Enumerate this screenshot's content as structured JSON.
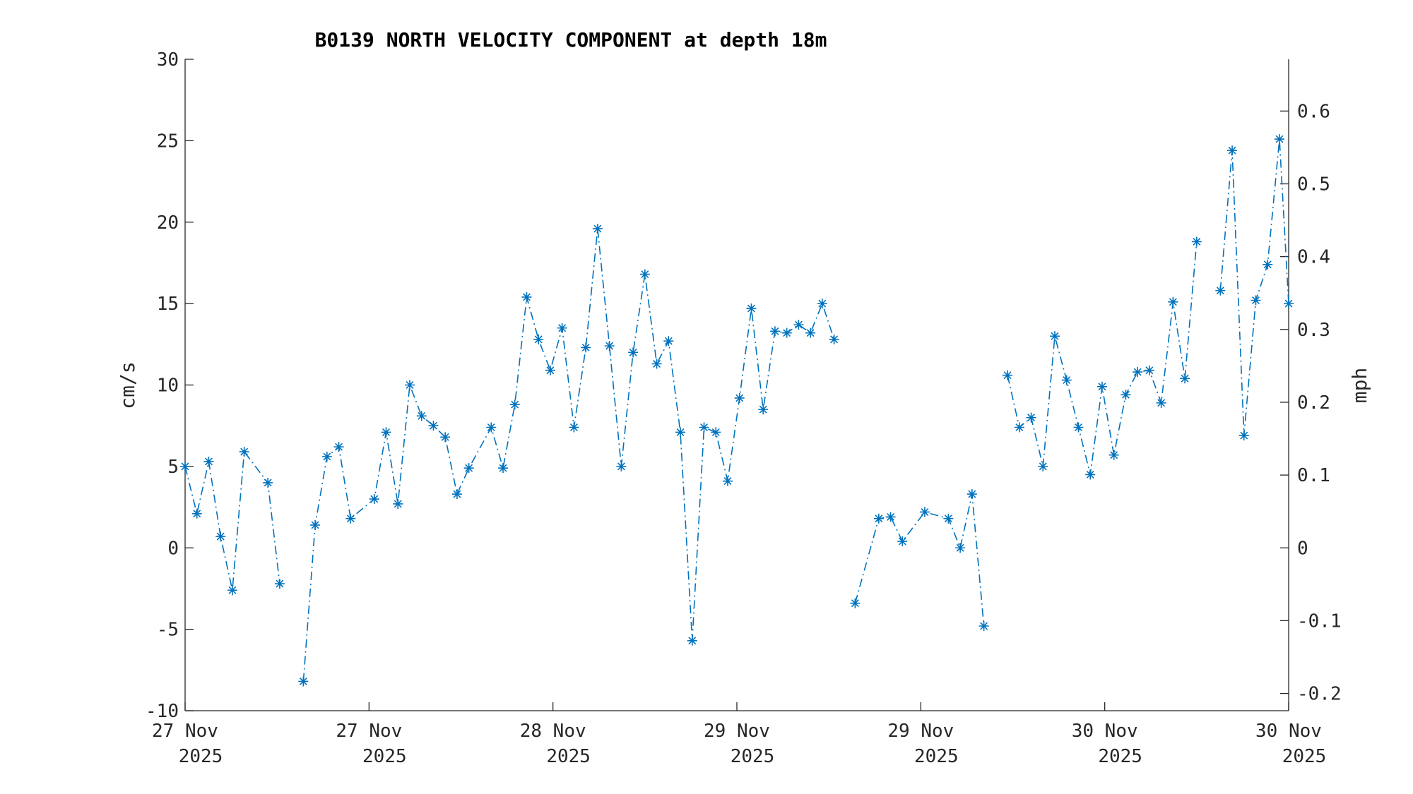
{
  "chart_data": {
    "type": "line",
    "title": "B0139 NORTH VELOCITY COMPONENT at depth 18m",
    "ylabel": "cm/s",
    "y2label": "mph",
    "ylim": [
      -10,
      30
    ],
    "y2lim": [
      -0.2237,
      0.6711
    ],
    "xlim": [
      0,
      84
    ],
    "grid": false,
    "legend": "none",
    "colors": {
      "series": "#0072BD",
      "axis": "#262626"
    },
    "yticks": [
      -10,
      -5,
      0,
      5,
      10,
      15,
      20,
      25,
      30
    ],
    "y2ticks": [
      -0.2,
      -0.1,
      0,
      0.1,
      0.2,
      0.3,
      0.4,
      0.5,
      0.6
    ],
    "y2ticklabels": [
      "-0.2",
      "-0.1",
      "0",
      "0.1",
      "0.2",
      "0.3",
      "0.4",
      "0.5",
      "0.6"
    ],
    "xticks": [
      {
        "x": 0,
        "line1": "27 Nov",
        "line2": "2025"
      },
      {
        "x": 14,
        "line1": "27 Nov",
        "line2": "2025"
      },
      {
        "x": 28,
        "line1": "28 Nov",
        "line2": "2025"
      },
      {
        "x": 42,
        "line1": "29 Nov",
        "line2": "2025"
      },
      {
        "x": 56,
        "line1": "29 Nov",
        "line2": "2025"
      },
      {
        "x": 70,
        "line1": "30 Nov",
        "line2": "2025"
      },
      {
        "x": 84,
        "line1": "30 Nov",
        "line2": "2025"
      }
    ],
    "series": [
      {
        "segments": [
          [
            [
              0,
              5.0
            ],
            [
              0.9,
              2.1
            ],
            [
              1.8,
              5.3
            ],
            [
              2.7,
              0.7
            ],
            [
              3.6,
              -2.6
            ],
            [
              4.5,
              5.9
            ],
            [
              6.3,
              4.0
            ],
            [
              7.2,
              -2.2
            ]
          ],
          [
            [
              9.0,
              -8.2
            ],
            [
              9.9,
              1.4
            ],
            [
              10.8,
              5.6
            ],
            [
              11.7,
              6.2
            ],
            [
              12.6,
              1.8
            ],
            [
              14.4,
              3.0
            ],
            [
              15.3,
              7.1
            ],
            [
              16.2,
              2.7
            ],
            [
              17.1,
              10.0
            ],
            [
              18.0,
              8.1
            ],
            [
              18.9,
              7.5
            ],
            [
              19.8,
              6.8
            ],
            [
              20.7,
              3.3
            ],
            [
              21.6,
              4.9
            ],
            [
              23.3,
              7.4
            ],
            [
              24.2,
              4.9
            ],
            [
              25.1,
              8.8
            ],
            [
              26.0,
              15.4
            ],
            [
              26.9,
              12.8
            ],
            [
              27.8,
              10.9
            ],
            [
              28.7,
              13.5
            ],
            [
              29.6,
              7.4
            ],
            [
              30.5,
              12.3
            ],
            [
              31.4,
              19.6
            ],
            [
              32.3,
              12.4
            ],
            [
              33.2,
              5.0
            ],
            [
              34.1,
              12.0
            ],
            [
              35.0,
              16.8
            ],
            [
              35.9,
              11.3
            ],
            [
              36.8,
              12.7
            ],
            [
              37.7,
              7.1
            ],
            [
              38.6,
              -5.7
            ],
            [
              39.5,
              7.4
            ],
            [
              40.4,
              7.1
            ],
            [
              41.3,
              4.1
            ],
            [
              42.2,
              9.2
            ],
            [
              43.1,
              14.7
            ],
            [
              44.0,
              8.5
            ],
            [
              44.9,
              13.3
            ],
            [
              45.8,
              13.2
            ],
            [
              46.7,
              13.7
            ],
            [
              47.6,
              13.2
            ],
            [
              48.5,
              15.0
            ],
            [
              49.4,
              12.8
            ]
          ],
          [
            [
              51.0,
              -3.4
            ],
            [
              52.8,
              1.8
            ],
            [
              53.7,
              1.9
            ],
            [
              54.6,
              0.4
            ],
            [
              56.3,
              2.2
            ],
            [
              58.1,
              1.8
            ],
            [
              59.0,
              0.0
            ],
            [
              59.9,
              3.3
            ],
            [
              60.8,
              -4.8
            ]
          ],
          [
            [
              62.6,
              10.6
            ],
            [
              63.5,
              7.4
            ],
            [
              64.4,
              8.0
            ],
            [
              65.3,
              5.0
            ],
            [
              66.2,
              13.0
            ],
            [
              67.1,
              10.3
            ],
            [
              68.0,
              7.4
            ],
            [
              68.9,
              4.5
            ],
            [
              69.8,
              9.9
            ],
            [
              70.7,
              5.7
            ],
            [
              71.6,
              9.4
            ],
            [
              72.5,
              10.8
            ],
            [
              73.4,
              10.9
            ],
            [
              74.3,
              8.9
            ],
            [
              75.2,
              15.1
            ],
            [
              76.1,
              10.4
            ],
            [
              77.0,
              18.8
            ]
          ],
          [
            [
              78.8,
              15.8
            ],
            [
              79.7,
              24.4
            ],
            [
              80.6,
              6.9
            ],
            [
              81.5,
              15.2
            ],
            [
              82.4,
              17.4
            ],
            [
              83.3,
              25.1
            ],
            [
              84.0,
              15.0
            ]
          ]
        ]
      }
    ]
  }
}
